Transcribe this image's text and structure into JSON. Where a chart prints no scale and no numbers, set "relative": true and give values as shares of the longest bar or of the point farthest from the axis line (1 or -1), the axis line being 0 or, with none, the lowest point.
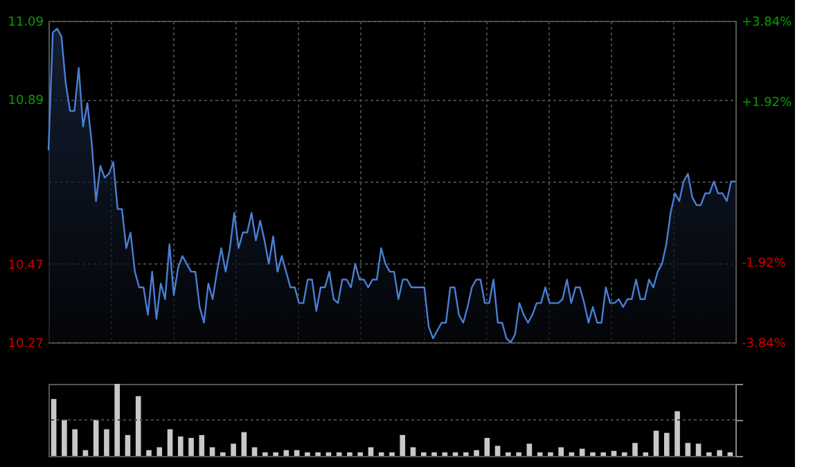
{
  "chart_data": [
    {
      "type": "area",
      "categories": [
        null,
        null,
        null,
        null,
        null,
        null,
        null,
        null,
        null,
        null,
        null,
        null,
        null,
        null,
        null,
        null,
        null,
        null,
        null,
        null,
        null,
        null,
        null,
        null,
        null,
        null,
        null,
        null,
        null,
        null,
        null,
        null,
        null,
        null,
        null,
        null,
        null,
        null,
        null,
        null,
        null,
        null,
        null,
        null,
        null,
        null,
        null,
        null,
        null,
        null,
        null,
        null,
        null,
        null,
        null,
        null,
        null,
        null,
        null,
        null,
        null,
        null,
        null,
        null,
        null,
        null,
        null,
        null,
        null,
        null,
        null,
        null,
        null,
        null,
        null,
        null,
        null,
        null,
        null,
        null,
        null,
        null,
        null,
        null,
        null,
        null,
        null,
        null,
        null,
        null,
        null,
        null,
        null,
        null,
        null,
        null,
        null,
        null,
        null,
        null,
        null,
        null,
        null,
        null,
        null,
        null,
        null,
        null,
        null,
        null,
        null,
        null,
        null,
        null,
        null,
        null,
        null,
        null,
        null,
        null,
        null,
        null,
        null,
        null,
        null,
        null,
        null,
        null,
        null,
        null,
        null,
        null,
        null,
        null,
        null,
        null,
        null,
        null,
        null,
        null,
        null,
        null,
        null,
        null,
        null,
        null,
        null,
        null,
        null,
        null,
        null,
        null,
        null,
        null,
        null,
        null,
        null,
        null,
        null,
        null
      ],
      "series": [
        {
          "color": "#4a7fd4",
          "values": [
            10.76,
            11.06,
            11.07,
            11.05,
            10.93,
            10.86,
            10.86,
            10.97,
            10.82,
            10.88,
            10.78,
            10.63,
            10.72,
            10.69,
            10.7,
            10.73,
            10.61,
            10.61,
            10.51,
            10.55,
            10.45,
            10.41,
            10.41,
            10.34,
            10.45,
            10.33,
            10.42,
            10.38,
            10.52,
            10.39,
            10.46,
            10.49,
            10.47,
            10.45,
            10.45,
            10.36,
            10.32,
            10.42,
            10.38,
            10.45,
            10.51,
            10.45,
            10.51,
            10.6,
            10.51,
            10.55,
            10.55,
            10.6,
            10.53,
            10.58,
            10.53,
            10.47,
            10.54,
            10.45,
            10.49,
            10.45,
            10.41,
            10.41,
            10.37,
            10.37,
            10.43,
            10.43,
            10.35,
            10.41,
            10.41,
            10.45,
            10.38,
            10.37,
            10.43,
            10.43,
            10.41,
            10.47,
            10.43,
            10.43,
            10.41,
            10.43,
            10.43,
            10.51,
            10.47,
            10.45,
            10.45,
            10.38,
            10.43,
            10.43,
            10.41,
            10.41,
            10.41,
            10.41,
            10.31,
            10.28,
            10.3,
            10.32,
            10.32,
            10.41,
            10.41,
            10.34,
            10.32,
            10.36,
            10.41,
            10.43,
            10.43,
            10.37,
            10.37,
            10.43,
            10.32,
            10.32,
            10.28,
            10.27,
            10.29,
            10.37,
            10.34,
            10.32,
            10.34,
            10.37,
            10.37,
            10.41,
            10.37,
            10.37,
            10.37,
            10.38,
            10.43,
            10.37,
            10.41,
            10.41,
            10.37,
            10.32,
            10.36,
            10.32,
            10.32,
            10.41,
            10.37,
            10.37,
            10.38,
            10.36,
            10.38,
            10.38,
            10.43,
            10.38,
            10.38,
            10.43,
            10.41,
            10.45,
            10.47,
            10.52,
            10.6,
            10.65,
            10.63,
            10.68,
            10.7,
            10.64,
            10.62,
            10.62,
            10.65,
            10.65,
            10.68,
            10.65,
            10.65,
            10.63,
            10.68,
            10.68
          ]
        }
      ],
      "ylim": [
        10.27,
        11.09
      ],
      "yticks": [
        10.27,
        10.47,
        {
          "value": 10.68,
          "label": null
        },
        10.89,
        11.09
      ],
      "y2lim": [
        -3.84,
        3.84
      ],
      "y2ticks": [
        {
          "value": -3.84,
          "label": "-3.84%"
        },
        {
          "value": -1.92,
          "label": "-1.92%"
        },
        {
          "value": 0,
          "label": null
        },
        {
          "value": 1.92,
          "label": "+1.92%"
        },
        {
          "value": 3.84,
          "label": "+3.84%"
        }
      ],
      "grid": true,
      "tick_labels": "y"
    },
    {
      "type": "bar",
      "relative": true,
      "categories": [
        null,
        null,
        null,
        null,
        null,
        null,
        null,
        null,
        null,
        null,
        null,
        null,
        null,
        null,
        null,
        null,
        null,
        null,
        null,
        null,
        null,
        null,
        null,
        null,
        null,
        null,
        null,
        null,
        null,
        null,
        null,
        null,
        null,
        null,
        null,
        null,
        null,
        null,
        null,
        null,
        null,
        null,
        null,
        null,
        null,
        null,
        null,
        null,
        null,
        null,
        null,
        null,
        null,
        null,
        null,
        null,
        null,
        null,
        null,
        null,
        null,
        null,
        null,
        null,
        null
      ],
      "series": [
        {
          "color": "#c8c8c8",
          "values": [
            0.79,
            0.5,
            0.37,
            0.08,
            0.5,
            0.37,
            1.0,
            0.29,
            0.83,
            0.08,
            0.12,
            0.37,
            0.27,
            0.25,
            0.29,
            0.12,
            0.05,
            0.17,
            0.33,
            0.12,
            0.05,
            0.05,
            0.08,
            0.08,
            0.05,
            0.05,
            0.05,
            0.05,
            0.05,
            0.05,
            0.12,
            0.05,
            0.05,
            0.29,
            0.12,
            0.05,
            0.05,
            0.05,
            0.05,
            0.05,
            0.08,
            0.25,
            0.14,
            0.05,
            0.05,
            0.17,
            0.05,
            0.05,
            0.12,
            0.05,
            0.1,
            0.05,
            0.05,
            0.07,
            0.05,
            0.18,
            0.05,
            0.35,
            0.32,
            0.62,
            0.18,
            0.17,
            0.05,
            0.08,
            0.05
          ]
        }
      ],
      "ref_lines": [
        {
          "axis": "y",
          "value": 0.5,
          "color": "#444444",
          "line_style": "dotted"
        }
      ],
      "tick_labels": false
    }
  ]
}
